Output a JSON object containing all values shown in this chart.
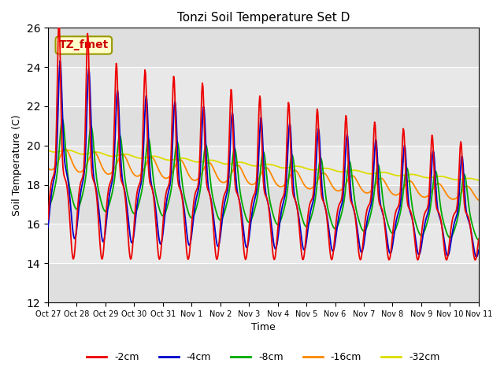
{
  "title": "Tonzi Soil Temperature Set D",
  "xlabel": "Time",
  "ylabel": "Soil Temperature (C)",
  "ylim": [
    12,
    26
  ],
  "yticks": [
    12,
    14,
    16,
    18,
    20,
    22,
    24,
    26
  ],
  "annotation_text": "TZ_fmet",
  "annotation_color": "#cc0000",
  "annotation_bg": "#ffffcc",
  "annotation_edge": "#999900",
  "series_colors": {
    "-2cm": "#ee0000",
    "-4cm": "#0000cc",
    "-8cm": "#00aa00",
    "-16cm": "#ff8800",
    "-32cm": "#dddd00"
  },
  "legend_labels": [
    "-2cm",
    "-4cm",
    "-8cm",
    "-16cm",
    "-32cm"
  ],
  "bg_plot": "#e8e8e8",
  "bg_fig": "#ffffff",
  "tick_labels": [
    "Oct 27",
    "Oct 28",
    "Oct 29",
    "Oct 30",
    "Oct 31",
    "Nov 1",
    "Nov 2",
    "Nov 3",
    "Nov 4",
    "Nov 5",
    "Nov 6",
    "Nov 7",
    "Nov 8",
    "Nov 9",
    "Nov 10",
    "Nov 11"
  ]
}
